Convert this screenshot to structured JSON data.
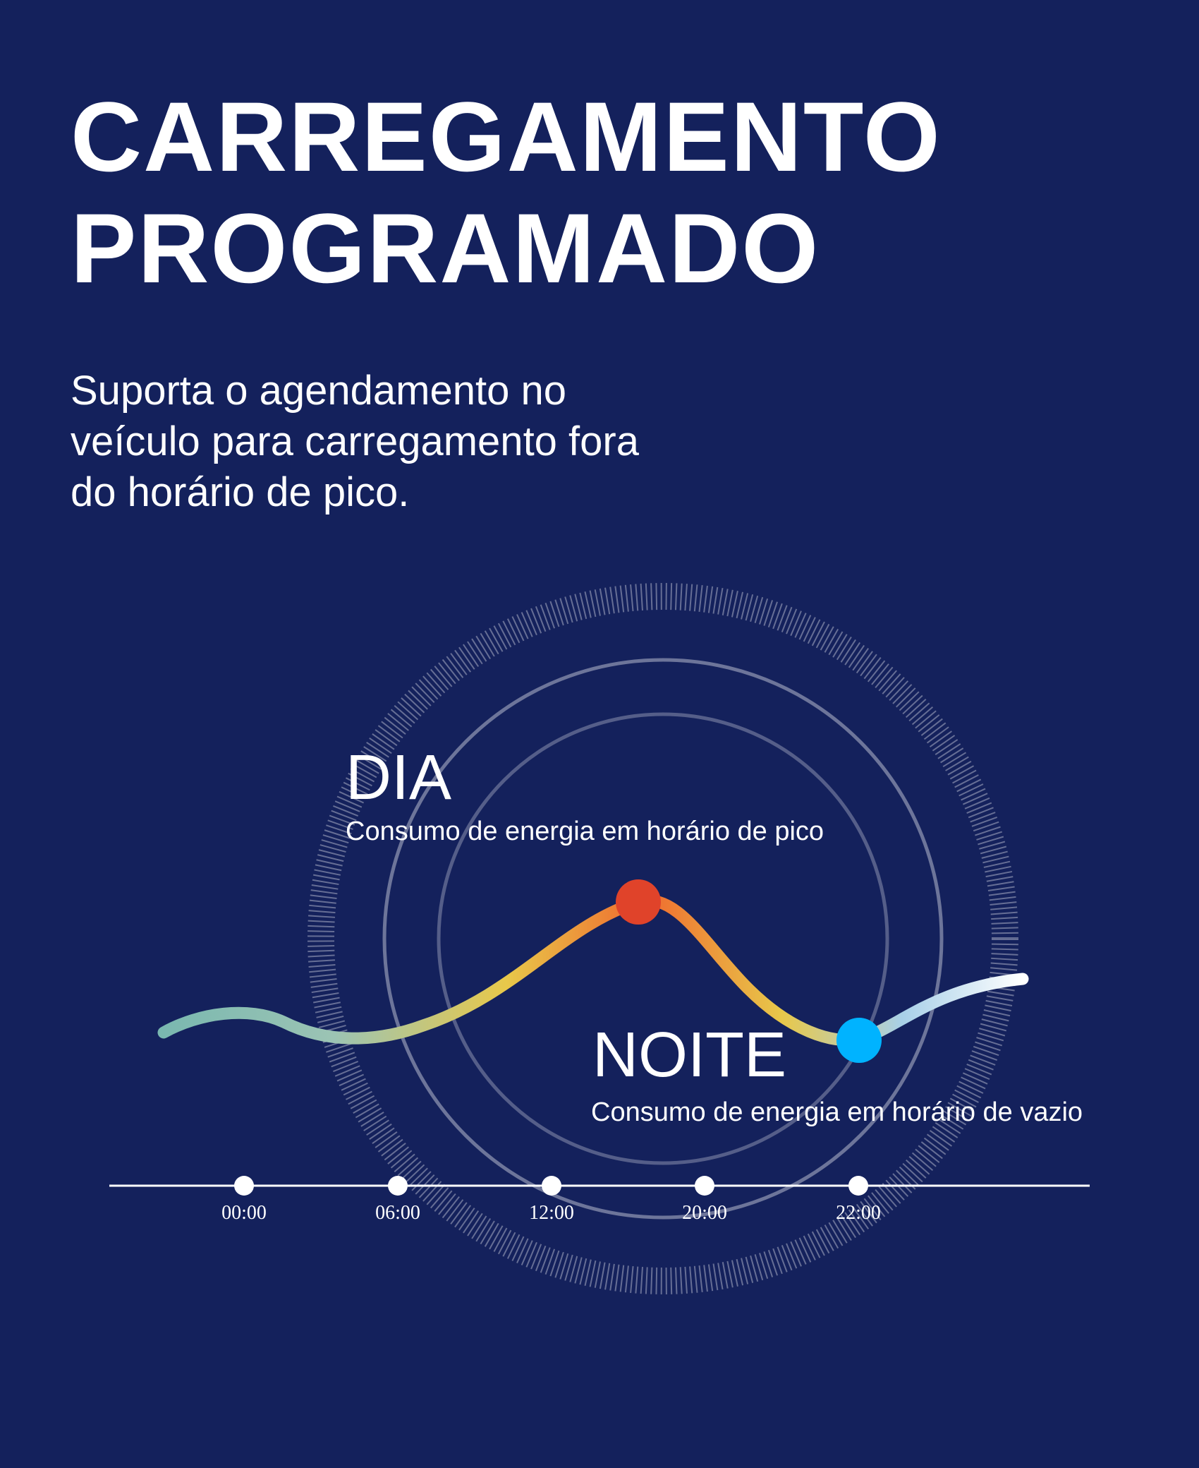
{
  "header": {
    "title_lines": [
      "CARREGAMENTO",
      "PROGRAMADO"
    ],
    "description_lines": [
      "Suporta o agendamento no",
      "veículo para carregamento fora",
      "do horário de pico."
    ]
  },
  "day": {
    "label": "DIA",
    "description": "Consumo de energia em horário de pico"
  },
  "night": {
    "label": "NOITE",
    "description": "Consumo de energia em horário de vazio"
  },
  "timeline": {
    "ticks": [
      "00:00",
      "06:00",
      "12:00",
      "20:00",
      "22:00"
    ]
  },
  "colors": {
    "background": "#14215c",
    "peak": "#e0432a",
    "offpeak": "#00b3ff",
    "curve_start": "#7ab8b0",
    "curve_mid": "#e8c84a",
    "curve_end": "#ffffff"
  }
}
